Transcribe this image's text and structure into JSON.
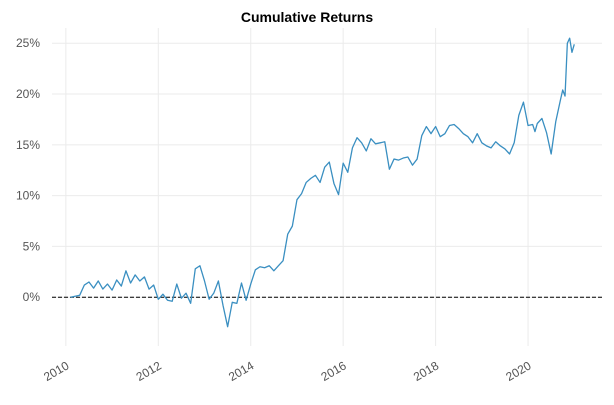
{
  "chart_data": {
    "type": "line",
    "title": "Cumulative Returns",
    "xlabel": "",
    "ylabel": "",
    "xlim": [
      2009.7,
      2021.6
    ],
    "ylim": [
      -4.8,
      26.5
    ],
    "grid": true,
    "legend": "none",
    "x_ticks": [
      {
        "value": 2010,
        "label": "2010"
      },
      {
        "value": 2012,
        "label": "2012"
      },
      {
        "value": 2014,
        "label": "2014"
      },
      {
        "value": 2016,
        "label": "2016"
      },
      {
        "value": 2018,
        "label": "2018"
      },
      {
        "value": 2020,
        "label": "2020"
      }
    ],
    "y_ticks": [
      {
        "value": 0,
        "label": "0%"
      },
      {
        "value": 5,
        "label": "5%"
      },
      {
        "value": 10,
        "label": "10%"
      },
      {
        "value": 15,
        "label": "15%"
      },
      {
        "value": 20,
        "label": "20%"
      },
      {
        "value": 25,
        "label": "25%"
      }
    ],
    "reference_line": {
      "y": 0,
      "style": "dashed",
      "color": "#000000"
    },
    "series": [
      {
        "color": "#3a8fc1",
        "x": [
          2010.1,
          2010.3,
          2010.4,
          2010.5,
          2010.6,
          2010.7,
          2010.8,
          2010.9,
          2011.0,
          2011.1,
          2011.2,
          2011.3,
          2011.4,
          2011.5,
          2011.6,
          2011.7,
          2011.8,
          2011.9,
          2012.0,
          2012.1,
          2012.2,
          2012.3,
          2012.4,
          2012.5,
          2012.6,
          2012.7,
          2012.8,
          2012.9,
          2013.0,
          2013.1,
          2013.2,
          2013.3,
          2013.4,
          2013.5,
          2013.6,
          2013.7,
          2013.8,
          2013.9,
          2014.0,
          2014.1,
          2014.2,
          2014.3,
          2014.4,
          2014.5,
          2014.6,
          2014.7,
          2014.8,
          2014.9,
          2015.0,
          2015.1,
          2015.2,
          2015.3,
          2015.4,
          2015.5,
          2015.6,
          2015.7,
          2015.8,
          2015.9,
          2016.0,
          2016.1,
          2016.2,
          2016.3,
          2016.4,
          2016.5,
          2016.6,
          2016.7,
          2016.8,
          2016.9,
          2017.0,
          2017.1,
          2017.2,
          2017.3,
          2017.4,
          2017.5,
          2017.6,
          2017.7,
          2017.8,
          2017.9,
          2018.0,
          2018.1,
          2018.2,
          2018.3,
          2018.4,
          2018.5,
          2018.6,
          2018.7,
          2018.8,
          2018.9,
          2019.0,
          2019.1,
          2019.2,
          2019.3,
          2019.4,
          2019.5,
          2019.6,
          2019.7,
          2019.8,
          2019.9,
          2020.0,
          2020.1,
          2020.15,
          2020.2,
          2020.3,
          2020.4,
          2020.5,
          2020.6,
          2020.7,
          2020.75,
          2020.8,
          2020.85,
          2020.9,
          2020.95,
          2021.0
        ],
        "y": [
          0,
          0.2,
          1.2,
          1.5,
          0.9,
          1.6,
          0.8,
          1.3,
          0.7,
          1.7,
          1.1,
          2.6,
          1.4,
          2.2,
          1.6,
          2.0,
          0.8,
          1.2,
          -0.2,
          0.3,
          -0.3,
          -0.4,
          1.3,
          -0.1,
          0.4,
          -0.6,
          2.8,
          3.1,
          1.6,
          -0.2,
          0.4,
          1.6,
          -0.8,
          -2.9,
          -0.5,
          -0.6,
          1.4,
          -0.3,
          1.3,
          2.7,
          3.0,
          2.9,
          3.1,
          2.6,
          3.1,
          3.6,
          6.2,
          7.0,
          9.6,
          10.2,
          11.3,
          11.7,
          12.0,
          11.3,
          12.8,
          13.3,
          11.2,
          10.1,
          13.2,
          12.3,
          14.7,
          15.7,
          15.2,
          14.4,
          15.6,
          15.1,
          15.2,
          15.3,
          12.6,
          13.6,
          13.5,
          13.7,
          13.8,
          13.0,
          13.6,
          15.9,
          16.8,
          16.1,
          16.8,
          15.8,
          16.1,
          16.9,
          17.0,
          16.6,
          16.1,
          15.8,
          15.2,
          16.1,
          15.2,
          14.9,
          14.7,
          15.3,
          14.9,
          14.6,
          14.1,
          15.2,
          17.9,
          19.2,
          16.9,
          17.0,
          16.3,
          17.1,
          17.6,
          16.2,
          14.1,
          17.3,
          19.4,
          20.4,
          19.8,
          25.0,
          25.5,
          24.1,
          24.9
        ]
      }
    ]
  }
}
